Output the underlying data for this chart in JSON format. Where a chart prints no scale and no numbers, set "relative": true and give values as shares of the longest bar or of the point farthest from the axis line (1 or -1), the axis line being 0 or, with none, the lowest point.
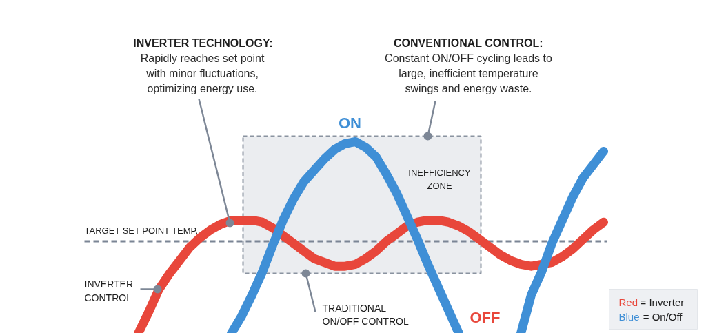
{
  "chart_data": {
    "type": "line",
    "relative": true,
    "legend": "bottom right",
    "categories": [
      null,
      null,
      null,
      null,
      null,
      null,
      null,
      null,
      null,
      null,
      null,
      null,
      null,
      null,
      null,
      null,
      null,
      null,
      null,
      null,
      null,
      null,
      null,
      null,
      null,
      null,
      null,
      null,
      null,
      null,
      null,
      null,
      null,
      null,
      null,
      null,
      null,
      null,
      null,
      null,
      null,
      null,
      null,
      null,
      null,
      null
    ],
    "series": [
      {
        "name": "Red = Inverter",
        "color": "#e8473b",
        "values": [
          0.0,
          0.11,
          0.23,
          0.31,
          0.38,
          0.45,
          0.5,
          0.54,
          0.57,
          0.59,
          0.59,
          0.59,
          0.58,
          0.55,
          0.51,
          0.47,
          0.43,
          0.39,
          0.37,
          0.35,
          0.35,
          0.36,
          0.39,
          0.43,
          0.48,
          0.52,
          0.56,
          0.58,
          0.59,
          0.59,
          0.58,
          0.56,
          0.53,
          0.49,
          0.45,
          0.41,
          0.38,
          0.36,
          0.35,
          0.36,
          0.37,
          0.4,
          0.44,
          0.49,
          0.54,
          0.58
        ]
      },
      {
        "name": "Blue = On/Off",
        "color": "#3f8fd6",
        "values": [
          null,
          null,
          null,
          null,
          null,
          null,
          null,
          null,
          null,
          0.0,
          0.09,
          0.2,
          0.32,
          0.46,
          0.59,
          0.7,
          0.79,
          0.85,
          0.91,
          0.96,
          0.99,
          1.0,
          0.97,
          0.92,
          0.83,
          0.73,
          0.61,
          0.49,
          0.36,
          0.24,
          0.12,
          0.0,
          null,
          null,
          null,
          null,
          null,
          0.0,
          0.2,
          0.32,
          0.47,
          0.59,
          0.71,
          0.81,
          0.88,
          0.95
        ]
      }
    ],
    "ref_lines": [
      {
        "axis": "y",
        "value": 0.48,
        "label": "TARGET SET POINT TEMP.",
        "color": "#7b8595",
        "line_style": "dashed"
      }
    ],
    "annotations": [
      "INVERTER TECHNOLOGY:",
      "Rapidly reaches set point\nwith minor fluctuations,\noptimizing energy use.",
      "CONVENTIONAL CONTROL:",
      "Constant ON/OFF cycling leads to\nlarge, inefficient temperature\nswings and energy waste.",
      "INEFFICIENCY\nZONE",
      "ON",
      "OFF",
      "INVERTER\nCONTROL",
      "TRADITIONAL\nON/OFF CONTROL"
    ]
  }
}
